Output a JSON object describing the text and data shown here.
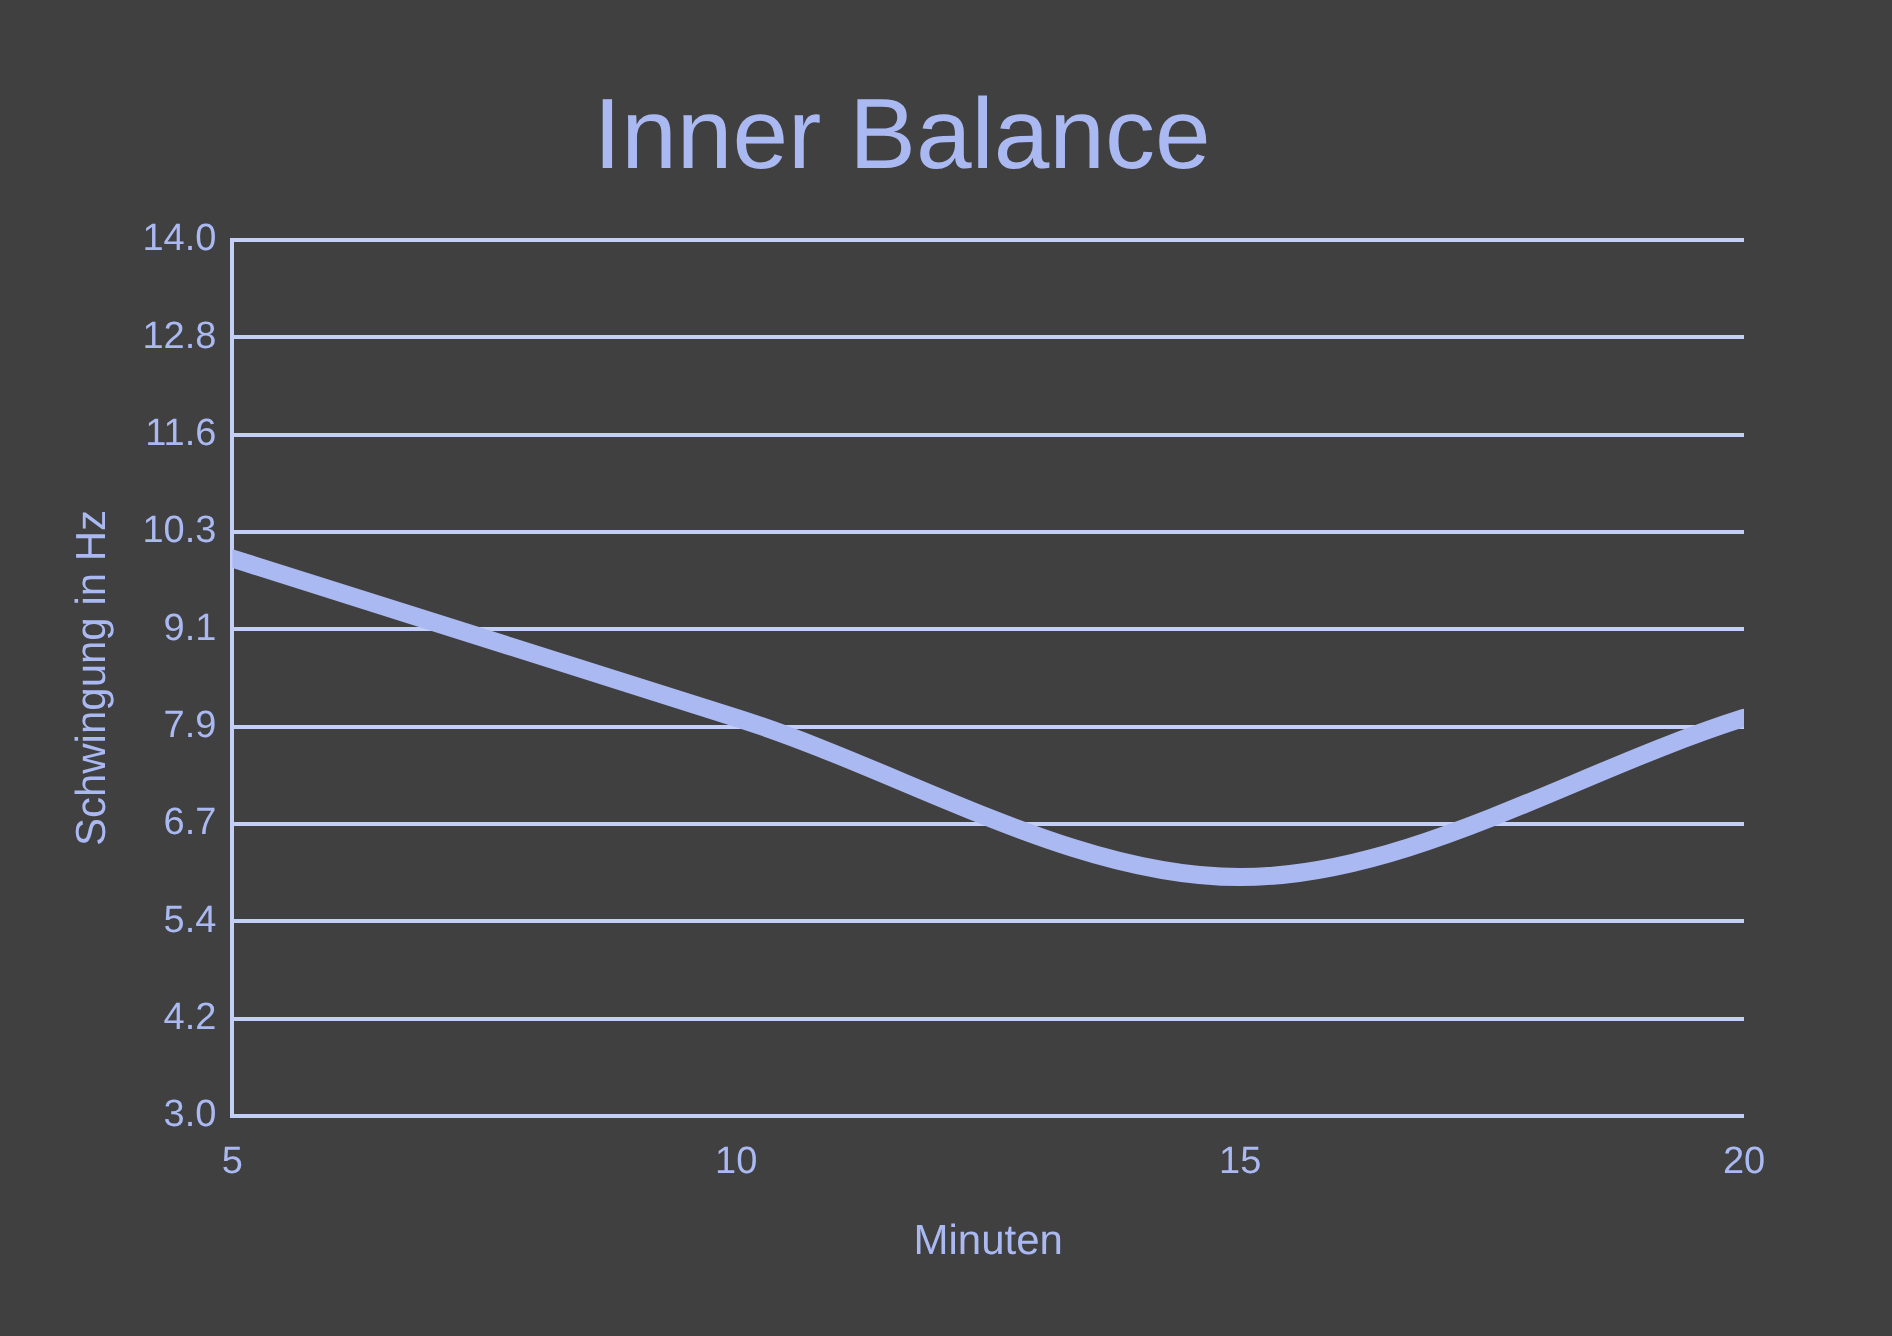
{
  "chart_data": {
    "type": "line",
    "title": "Inner Balance",
    "xlabel": "Minuten",
    "ylabel": "Schwingung in Hz",
    "x": [
      5,
      10,
      15,
      20
    ],
    "series": [
      {
        "color": "#aab9f2",
        "values": [
          10.0,
          8.0,
          6.0,
          8.0
        ]
      }
    ],
    "xlim": [
      5,
      20
    ],
    "xticks": [
      5,
      10,
      15,
      20
    ],
    "ylim": [
      3,
      14
    ],
    "yticks": [
      {
        "value": 3,
        "label": "3.0"
      },
      {
        "value": 4.222,
        "label": "4.2"
      },
      {
        "value": 5.444,
        "label": "5.4"
      },
      {
        "value": 6.667,
        "label": "6.7"
      },
      {
        "value": 7.889,
        "label": "7.9"
      },
      {
        "value": 9.111,
        "label": "9.1"
      },
      {
        "value": 10.333,
        "label": "10.3"
      },
      {
        "value": 11.556,
        "label": "11.6"
      },
      {
        "value": 12.778,
        "label": "12.8"
      },
      {
        "value": 14,
        "label": "14.0"
      }
    ],
    "grid": "y",
    "legend": false,
    "marker": "none",
    "line_style": "solid"
  }
}
